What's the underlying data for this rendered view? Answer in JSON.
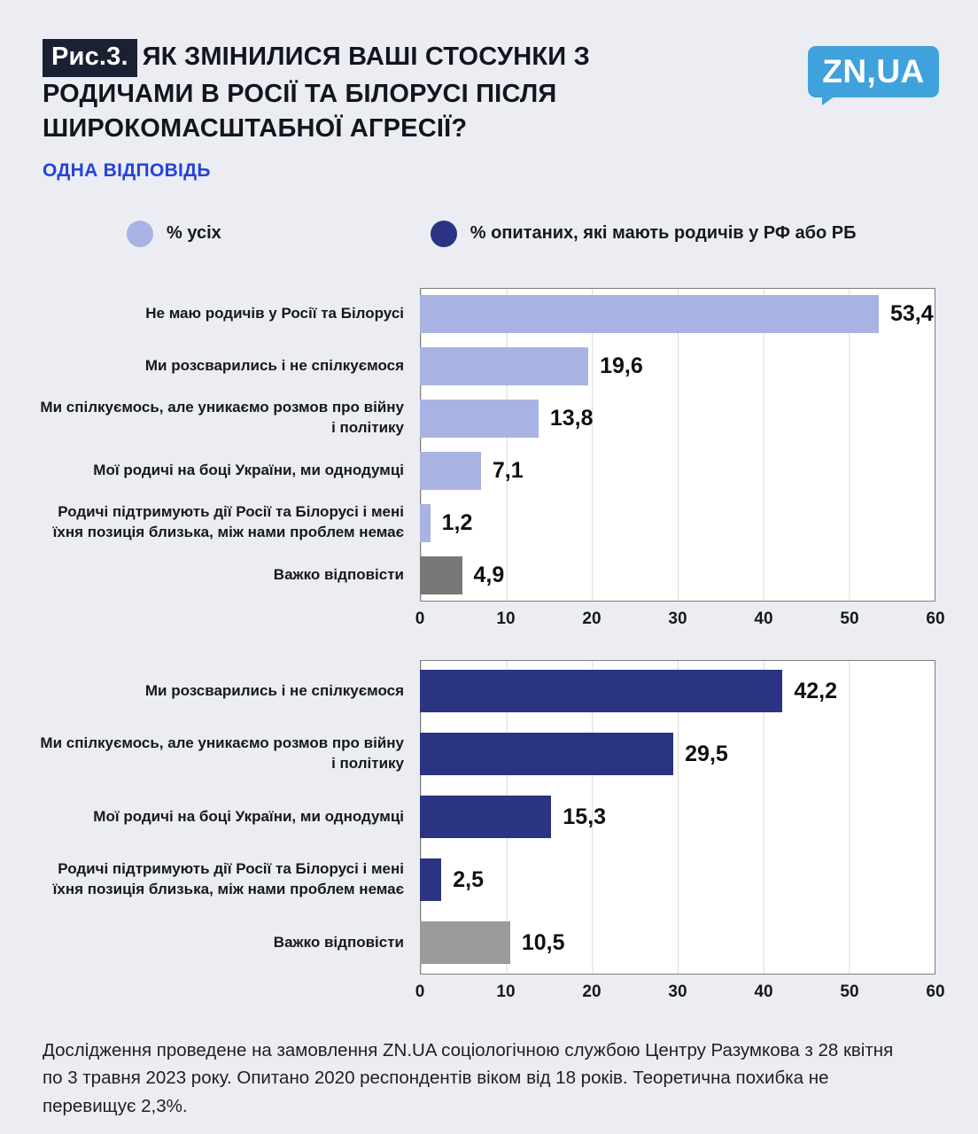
{
  "header": {
    "figure_label": "Рис.3.",
    "title": "ЯК ЗМІНИЛИСЯ ВАШІ СТОСУНКИ З РОДИЧАМИ В РОСІЇ ТА БІЛОРУСІ ПІСЛЯ ШИРОКОМАСШТАБНОЇ АГРЕСІЇ?",
    "subtitle": "ОДНА ВІДПОВІДЬ",
    "logo_text": "ZN,UA"
  },
  "legend": [
    {
      "label": "% усіх",
      "color": "#a9b3e3"
    },
    {
      "label": "% опитаних, які мають родичів у РФ або РБ",
      "color": "#2b3383"
    }
  ],
  "chart_data": [
    {
      "type": "bar",
      "orientation": "horizontal",
      "title": "",
      "xlim": [
        0,
        60
      ],
      "ticks": [
        0,
        10,
        20,
        30,
        40,
        50,
        60
      ],
      "grid": true,
      "bars": [
        {
          "label": "Не маю родичів у Росії та Білорусі",
          "value": 53.4,
          "display": "53,4",
          "color": "#a9b3e3"
        },
        {
          "label": "Ми розсварились і не спілкуємося",
          "value": 19.6,
          "display": "19,6",
          "color": "#a9b3e3"
        },
        {
          "label": "Ми спілкуємось, але уникаємо розмов про війну і політику",
          "value": 13.8,
          "display": "13,8",
          "color": "#a9b3e3"
        },
        {
          "label": "Мої родичі на боці України, ми однодумці",
          "value": 7.1,
          "display": "7,1",
          "color": "#a9b3e3"
        },
        {
          "label": "Родичі підтримують дії Росії та Білорусі і мені їхня позиція близька, між нами проблем немає",
          "value": 1.2,
          "display": "1,2",
          "color": "#a9b3e3"
        },
        {
          "label": "Важко відповісти",
          "value": 4.9,
          "display": "4,9",
          "color": "#777777"
        }
      ]
    },
    {
      "type": "bar",
      "orientation": "horizontal",
      "title": "",
      "xlim": [
        0,
        60
      ],
      "ticks": [
        0,
        10,
        20,
        30,
        40,
        50,
        60
      ],
      "grid": true,
      "bars": [
        {
          "label": "Ми розсварились і не спілкуємося",
          "value": 42.2,
          "display": "42,2",
          "color": "#2b3383"
        },
        {
          "label": "Ми спілкуємось, але уникаємо розмов про війну і політику",
          "value": 29.5,
          "display": "29,5",
          "color": "#2b3383"
        },
        {
          "label": "Мої родичі на боці України, ми однодумці",
          "value": 15.3,
          "display": "15,3",
          "color": "#2b3383"
        },
        {
          "label": "Родичі підтримують дії Росії та Білорусі і мені їхня позиція близька, між нами проблем немає",
          "value": 2.5,
          "display": "2,5",
          "color": "#2b3383"
        },
        {
          "label": "Важко відповісти",
          "value": 10.5,
          "display": "10,5",
          "color": "#9b9b9b"
        }
      ]
    }
  ],
  "footer": {
    "text": "Дослідження проведене на замовлення ZN.UA соціологічною службою Центру Разумкова з 28 квітня по 3 травня 2023 року. Опитано 2020 респондентів віком від 18 років. Теоретична похибка не перевищує 2,3%."
  },
  "colors": {
    "page_bg": "#ebedf2",
    "badge_bg": "#1a2133",
    "title_text": "#12151d",
    "subtitle": "#2742d8",
    "logo_bg": "#3fa2dc",
    "logo_text": "#ffffff",
    "bar_light": "#a9b3e3",
    "bar_dark": "#2b3383",
    "bar_gray_chart1": "#777777",
    "bar_gray_chart2": "#9b9b9b",
    "plot_border": "#7f7f7f",
    "gridline": "#d9d9d9"
  }
}
